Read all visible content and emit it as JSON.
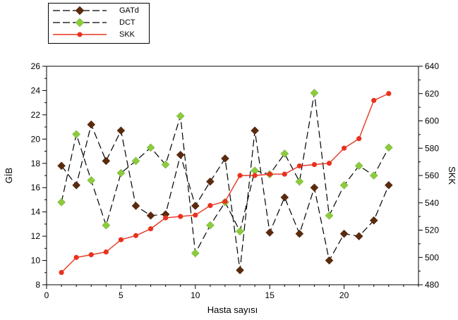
{
  "chart_data": {
    "type": "line",
    "xlabel": "Hasta sayısı",
    "ylabel": "GİB",
    "y2label": "SKK",
    "xlim": [
      0,
      25
    ],
    "ylim": [
      8,
      26
    ],
    "y2lim": [
      480,
      640
    ],
    "xticks": [
      0,
      5,
      10,
      15,
      20
    ],
    "yticks": [
      8,
      10,
      12,
      14,
      16,
      18,
      20,
      22,
      24,
      26
    ],
    "y2ticks": [
      480,
      500,
      520,
      540,
      560,
      580,
      600,
      620,
      640
    ],
    "x": [
      1,
      2,
      3,
      4,
      5,
      6,
      7,
      8,
      9,
      10,
      11,
      12,
      13,
      14,
      15,
      16,
      17,
      18,
      19,
      20,
      21,
      22,
      23
    ],
    "legend_position": "top-left",
    "grid": false,
    "series": [
      {
        "name": "GATd",
        "axis": "left",
        "color": "#5c2a0c",
        "line_color": "#000000",
        "line_style": "dashed",
        "marker": "diamond",
        "values": [
          17.8,
          16.2,
          21.2,
          18.2,
          20.7,
          14.5,
          13.7,
          13.8,
          18.7,
          14.5,
          16.5,
          18.4,
          9.2,
          20.7,
          12.3,
          15.2,
          12.2,
          16.0,
          10.0,
          12.2,
          12.0,
          13.3,
          16.2
        ]
      },
      {
        "name": "DCT",
        "axis": "left",
        "color": "#8ccc3c",
        "line_color": "#000000",
        "line_style": "dashed",
        "marker": "diamond",
        "values": [
          14.8,
          20.4,
          16.6,
          12.9,
          17.2,
          18.2,
          19.3,
          17.9,
          21.9,
          10.6,
          12.9,
          14.8,
          12.4,
          17.4,
          17.1,
          18.8,
          16.5,
          23.8,
          13.7,
          16.2,
          17.8,
          17.0,
          19.3
        ]
      },
      {
        "name": "SKK",
        "axis": "right",
        "color": "#e8321e",
        "line_color": "#e8321e",
        "line_style": "solid",
        "marker": "circle",
        "values": [
          489,
          500,
          502,
          504,
          513,
          516,
          521,
          529,
          530,
          531,
          538,
          541,
          560,
          560,
          561,
          561,
          567,
          568,
          569,
          580,
          587,
          615,
          620
        ]
      }
    ]
  }
}
